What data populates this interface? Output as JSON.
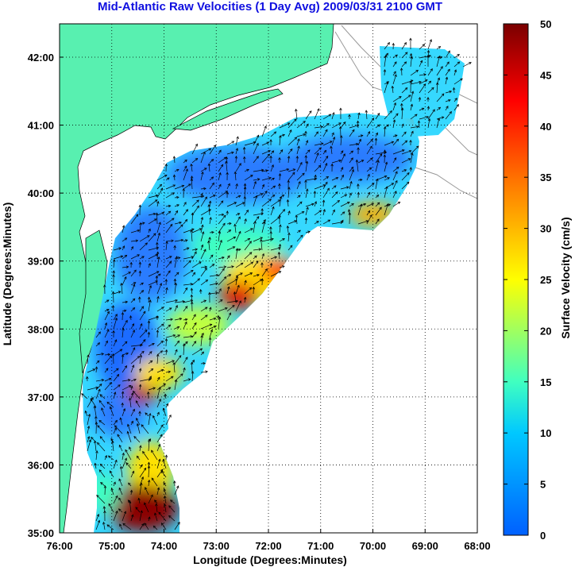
{
  "title": "Mid-Atlantic Raw Velocities (1 Day Avg) 2009/03/31 2100 GMT",
  "map": {
    "xlabel": "Longitude (Degrees:Minutes)",
    "ylabel": "Latitude (Degrees:Minutes)",
    "lon_ticks": [
      "76:00",
      "75:00",
      "74:00",
      "73:00",
      "72:00",
      "71:00",
      "70:00",
      "69:00",
      "68:00"
    ],
    "lat_ticks": [
      "35:00",
      "36:00",
      "37:00",
      "38:00",
      "39:00",
      "40:00",
      "41:00",
      "42:00"
    ],
    "land_color": "#58f0b0",
    "colors": {
      "low": "#0060ff",
      "mid": "#40ffc0",
      "high": "#ffe000",
      "max": "#8b0000"
    }
  },
  "colorbar": {
    "label": "Surface Velocity (cm/s)",
    "ticks": [
      "0",
      "5",
      "10",
      "15",
      "20",
      "25",
      "30",
      "35",
      "40",
      "45",
      "50"
    ]
  }
}
